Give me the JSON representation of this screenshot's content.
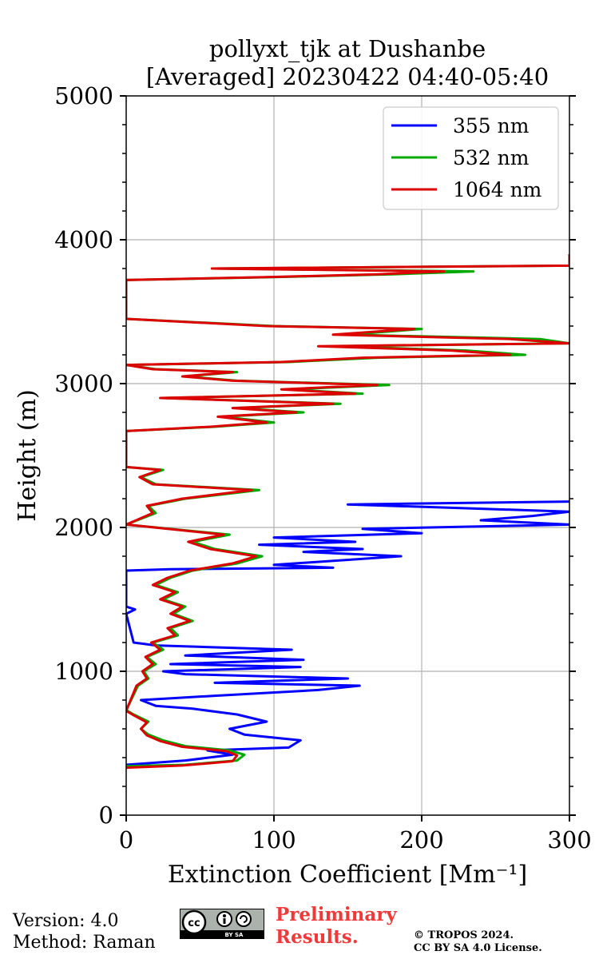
{
  "chart_data": {
    "type": "line",
    "orientation": "profile",
    "title_lines": [
      "pollyxt_tjk at Dushanbe",
      "[Averaged] 20230422 04:40-05:40"
    ],
    "xlabel": "Extinction Coefficient [Mm⁻¹]",
    "ylabel": "Height (m)",
    "xlim": [
      0,
      300
    ],
    "ylim": [
      0,
      5000
    ],
    "x_ticks": [
      0,
      100,
      200,
      300
    ],
    "y_ticks": [
      0,
      1000,
      2000,
      3000,
      4000,
      5000
    ],
    "x_tick_labels": [
      "0",
      "100",
      "200",
      "300"
    ],
    "y_tick_labels": [
      "0",
      "1000",
      "2000",
      "3000",
      "4000",
      "5000"
    ],
    "grid": true,
    "legend_position": "top-right",
    "series": [
      {
        "name": "355 nm",
        "color": "#0000ff",
        "points": [
          [
            0,
            350
          ],
          [
            40,
            380
          ],
          [
            72,
            420
          ],
          [
            55,
            450
          ],
          [
            110,
            470
          ],
          [
            118,
            520
          ],
          [
            80,
            560
          ],
          [
            70,
            600
          ],
          [
            95,
            650
          ],
          [
            75,
            700
          ],
          [
            45,
            740
          ],
          [
            20,
            760
          ],
          [
            10,
            800
          ],
          [
            60,
            830
          ],
          [
            130,
            870
          ],
          [
            158,
            900
          ],
          [
            60,
            920
          ],
          [
            150,
            950
          ],
          [
            40,
            980
          ],
          [
            25,
            1000
          ],
          [
            118,
            1030
          ],
          [
            30,
            1050
          ],
          [
            120,
            1080
          ],
          [
            40,
            1110
          ],
          [
            112,
            1150
          ],
          [
            20,
            1180
          ],
          [
            5,
            1200
          ],
          [
            0,
            1400
          ],
          [
            6,
            1430
          ],
          [
            0,
            1450
          ],
          [
            0,
            1700
          ],
          [
            30,
            1710
          ],
          [
            140,
            1720
          ],
          [
            100,
            1740
          ],
          [
            186,
            1800
          ],
          [
            120,
            1830
          ],
          [
            160,
            1850
          ],
          [
            90,
            1880
          ],
          [
            155,
            1900
          ],
          [
            100,
            1930
          ],
          [
            200,
            1960
          ],
          [
            160,
            1990
          ],
          [
            300,
            2020
          ],
          [
            240,
            2050
          ],
          [
            275,
            2080
          ],
          [
            300,
            2110
          ],
          [
            210,
            2140
          ],
          [
            150,
            2160
          ],
          [
            300,
            2180
          ]
        ]
      },
      {
        "name": "532 nm",
        "color": "#00aa00",
        "points": [
          [
            0,
            340
          ],
          [
            40,
            350
          ],
          [
            75,
            380
          ],
          [
            80,
            420
          ],
          [
            70,
            450
          ],
          [
            40,
            480
          ],
          [
            25,
            520
          ],
          [
            15,
            560
          ],
          [
            10,
            600
          ],
          [
            15,
            650
          ],
          [
            5,
            700
          ],
          [
            0,
            730
          ],
          [
            8,
            900
          ],
          [
            15,
            950
          ],
          [
            12,
            1000
          ],
          [
            20,
            1050
          ],
          [
            14,
            1100
          ],
          [
            25,
            1150
          ],
          [
            18,
            1200
          ],
          [
            35,
            1250
          ],
          [
            30,
            1300
          ],
          [
            45,
            1350
          ],
          [
            32,
            1400
          ],
          [
            40,
            1450
          ],
          [
            25,
            1500
          ],
          [
            35,
            1550
          ],
          [
            20,
            1600
          ],
          [
            30,
            1650
          ],
          [
            45,
            1700
          ],
          [
            75,
            1750
          ],
          [
            92,
            1800
          ],
          [
            60,
            1850
          ],
          [
            45,
            1900
          ],
          [
            70,
            1950
          ],
          [
            40,
            1980
          ],
          [
            0,
            2020
          ],
          [
            20,
            2100
          ],
          [
            15,
            2150
          ],
          [
            40,
            2200
          ],
          [
            90,
            2260
          ],
          [
            20,
            2300
          ],
          [
            10,
            2350
          ],
          [
            25,
            2400
          ],
          [
            0,
            2420
          ],
          [
            0,
            2670
          ],
          [
            60,
            2700
          ],
          [
            100,
            2730
          ],
          [
            65,
            2770
          ],
          [
            120,
            2800
          ],
          [
            75,
            2830
          ],
          [
            145,
            2860
          ],
          [
            25,
            2900
          ],
          [
            160,
            2930
          ],
          [
            110,
            2960
          ],
          [
            178,
            2990
          ],
          [
            75,
            3020
          ],
          [
            40,
            3050
          ],
          [
            75,
            3080
          ],
          [
            20,
            3100
          ],
          [
            0,
            3130
          ],
          [
            110,
            3150
          ],
          [
            170,
            3180
          ],
          [
            270,
            3200
          ],
          [
            230,
            3230
          ],
          [
            140,
            3260
          ],
          [
            300,
            3280
          ],
          [
            280,
            3310
          ],
          [
            150,
            3340
          ],
          [
            200,
            3380
          ],
          [
            100,
            3400
          ],
          [
            0,
            3450
          ],
          [
            0,
            3720
          ],
          [
            100,
            3740
          ],
          [
            180,
            3760
          ],
          [
            235,
            3780
          ],
          [
            60,
            3800
          ],
          [
            300,
            3820
          ],
          [
            300,
            3900
          ]
        ]
      },
      {
        "name": "1064 nm",
        "color": "#dd0000",
        "points": [
          [
            0,
            330
          ],
          [
            38,
            345
          ],
          [
            72,
            375
          ],
          [
            75,
            415
          ],
          [
            68,
            445
          ],
          [
            38,
            475
          ],
          [
            23,
            515
          ],
          [
            14,
            555
          ],
          [
            10,
            600
          ],
          [
            14,
            645
          ],
          [
            5,
            695
          ],
          [
            0,
            725
          ],
          [
            7,
            900
          ],
          [
            14,
            950
          ],
          [
            11,
            1000
          ],
          [
            18,
            1050
          ],
          [
            13,
            1100
          ],
          [
            23,
            1150
          ],
          [
            17,
            1200
          ],
          [
            33,
            1250
          ],
          [
            28,
            1300
          ],
          [
            43,
            1350
          ],
          [
            30,
            1400
          ],
          [
            38,
            1450
          ],
          [
            23,
            1500
          ],
          [
            33,
            1550
          ],
          [
            18,
            1600
          ],
          [
            28,
            1650
          ],
          [
            43,
            1700
          ],
          [
            72,
            1750
          ],
          [
            88,
            1800
          ],
          [
            57,
            1850
          ],
          [
            42,
            1900
          ],
          [
            66,
            1950
          ],
          [
            38,
            1980
          ],
          [
            0,
            2020
          ],
          [
            18,
            2100
          ],
          [
            14,
            2150
          ],
          [
            38,
            2200
          ],
          [
            85,
            2260
          ],
          [
            18,
            2300
          ],
          [
            9,
            2350
          ],
          [
            23,
            2400
          ],
          [
            0,
            2420
          ],
          [
            0,
            2670
          ],
          [
            57,
            2700
          ],
          [
            95,
            2730
          ],
          [
            62,
            2770
          ],
          [
            115,
            2800
          ],
          [
            72,
            2830
          ],
          [
            140,
            2860
          ],
          [
            23,
            2900
          ],
          [
            155,
            2930
          ],
          [
            105,
            2960
          ],
          [
            170,
            2990
          ],
          [
            72,
            3020
          ],
          [
            38,
            3050
          ],
          [
            72,
            3080
          ],
          [
            18,
            3100
          ],
          [
            0,
            3130
          ],
          [
            105,
            3150
          ],
          [
            160,
            3180
          ],
          [
            260,
            3200
          ],
          [
            220,
            3230
          ],
          [
            130,
            3260
          ],
          [
            300,
            3280
          ],
          [
            260,
            3310
          ],
          [
            140,
            3340
          ],
          [
            195,
            3380
          ],
          [
            95,
            3400
          ],
          [
            0,
            3450
          ],
          [
            0,
            3720
          ],
          [
            95,
            3740
          ],
          [
            170,
            3760
          ],
          [
            215,
            3780
          ],
          [
            58,
            3800
          ],
          [
            300,
            3820
          ],
          [
            300,
            3900
          ]
        ]
      }
    ]
  },
  "footer": {
    "version": "Version: 4.0",
    "method": "Method: Raman",
    "preliminary_line1": "Preliminary",
    "preliminary_line2": "Results.",
    "copyright_line1": "© TROPOS 2024.",
    "copyright_line2": "CC BY SA 4.0 License.",
    "license_badge_text": "BY SA"
  }
}
